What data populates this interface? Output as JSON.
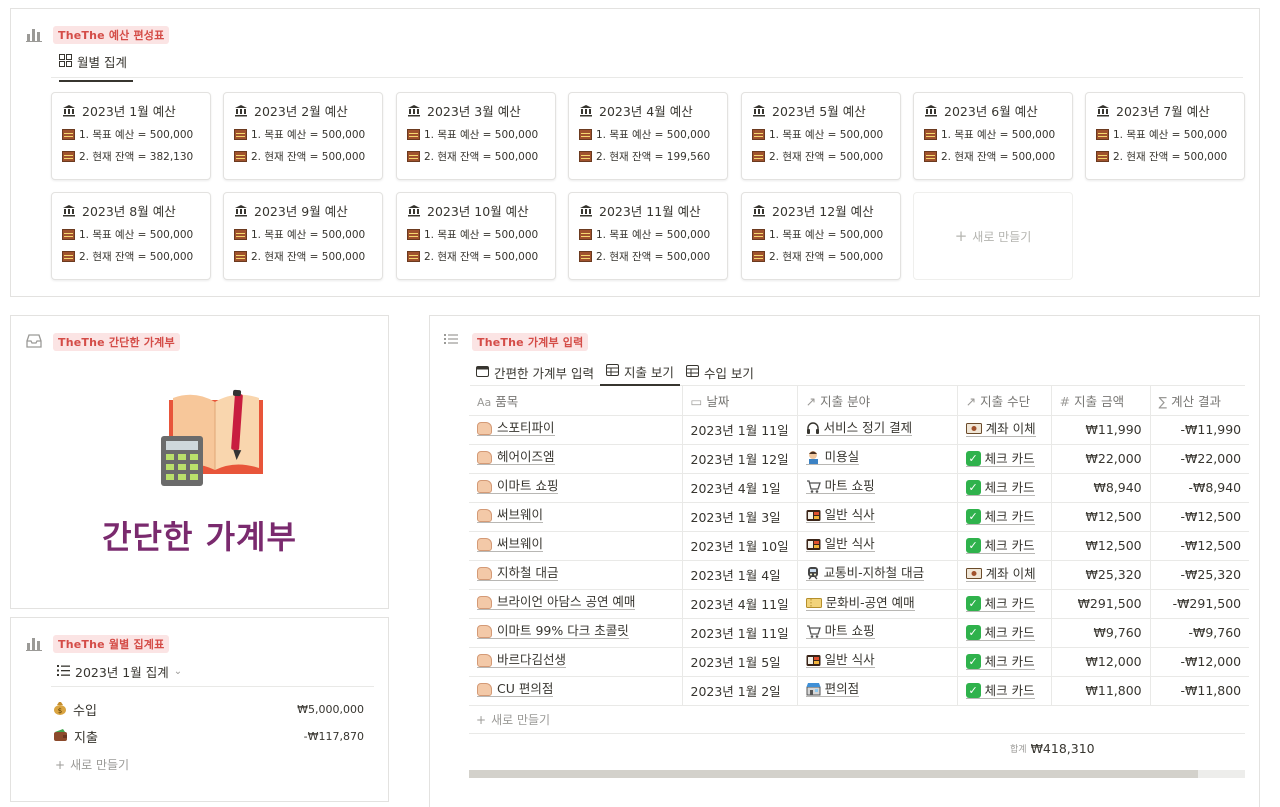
{
  "budget_board": {
    "tag": "TheThe 예산 편성표",
    "view_tab": "월별 집계",
    "cards": [
      {
        "title": "2023년 1월 예산",
        "target": "1. 목표 예산 = 500,000",
        "balance": "2. 현재 잔액 = 382,130"
      },
      {
        "title": "2023년 2월 예산",
        "target": "1. 목표 예산 = 500,000",
        "balance": "2. 현재 잔액 = 500,000"
      },
      {
        "title": "2023년 3월 예산",
        "target": "1. 목표 예산 = 500,000",
        "balance": "2. 현재 잔액 = 500,000"
      },
      {
        "title": "2023년 4월 예산",
        "target": "1. 목표 예산 = 500,000",
        "balance": "2. 현재 잔액 = 199,560"
      },
      {
        "title": "2023년 5월 예산",
        "target": "1. 목표 예산 = 500,000",
        "balance": "2. 현재 잔액 = 500,000"
      },
      {
        "title": "2023년 6월 예산",
        "target": "1. 목표 예산 = 500,000",
        "balance": "2. 현재 잔액 = 500,000"
      },
      {
        "title": "2023년 7월 예산",
        "target": "1. 목표 예산 = 500,000",
        "balance": "2. 현재 잔액 = 500,000"
      },
      {
        "title": "2023년 8월 예산",
        "target": "1. 목표 예산 = 500,000",
        "balance": "2. 현재 잔액 = 500,000"
      },
      {
        "title": "2023년 9월 예산",
        "target": "1. 목표 예산 = 500,000",
        "balance": "2. 현재 잔액 = 500,000"
      },
      {
        "title": "2023년 10월 예산",
        "target": "1. 목표 예산 = 500,000",
        "balance": "2. 현재 잔액 = 500,000"
      },
      {
        "title": "2023년 11월 예산",
        "target": "1. 목표 예산 = 500,000",
        "balance": "2. 현재 잔액 = 500,000"
      },
      {
        "title": "2023년 12월 예산",
        "target": "1. 목표 예산 = 500,000",
        "balance": "2. 현재 잔액 = 500,000"
      }
    ],
    "new_label": "새로 만들기"
  },
  "easy_ledger": {
    "tag": "TheThe 간단한 가계부",
    "title": "간단한 가계부"
  },
  "monthly_summary": {
    "tag": "TheThe 월별 집계표",
    "view": "2023년 1월 집계",
    "rows": [
      {
        "label": "수입",
        "value": "₩5,000,000",
        "icon": "money-bag-icon"
      },
      {
        "label": "지출",
        "value": "-₩117,870",
        "icon": "wallet-icon"
      }
    ],
    "new_label": "새로 만들기"
  },
  "ledger": {
    "tag": "TheThe 가계부 입력",
    "tabs": [
      "간편한 가계부 입력",
      "지출 보기",
      "수입 보기"
    ],
    "active_tab": 1,
    "columns": [
      "품목",
      "날짜",
      "지출 분야",
      "지출 수단",
      "지출 금액",
      "계산 결과"
    ],
    "rows": [
      {
        "item": "스포티파이",
        "date": "2023년 1월 11일",
        "category": "서비스 정기 결제",
        "cat_icon": "headphones-icon",
        "method": "계좌 이체",
        "method_icon": "banknote-icon",
        "amount": "₩11,990",
        "result": "-₩11,990"
      },
      {
        "item": "헤어이즈엠",
        "date": "2023년 1월 12일",
        "category": "미용실",
        "cat_icon": "haircut-icon",
        "method": "체크 카드",
        "method_icon": "check-icon",
        "amount": "₩22,000",
        "result": "-₩22,000"
      },
      {
        "item": "이마트 쇼핑",
        "date": "2023년 4월 1일",
        "category": "마트 쇼핑",
        "cat_icon": "cart-icon",
        "method": "체크 카드",
        "method_icon": "check-icon",
        "amount": "₩8,940",
        "result": "-₩8,940"
      },
      {
        "item": "써브웨이",
        "date": "2023년 1월 3일",
        "category": "일반 식사",
        "cat_icon": "bento-icon",
        "method": "체크 카드",
        "method_icon": "check-icon",
        "amount": "₩12,500",
        "result": "-₩12,500"
      },
      {
        "item": "써브웨이",
        "date": "2023년 1월 10일",
        "category": "일반 식사",
        "cat_icon": "bento-icon",
        "method": "체크 카드",
        "method_icon": "check-icon",
        "amount": "₩12,500",
        "result": "-₩12,500"
      },
      {
        "item": "지하철 대금",
        "date": "2023년 1월 4일",
        "category": "교통비-지하철 대금",
        "cat_icon": "metro-icon",
        "method": "계좌 이체",
        "method_icon": "banknote-icon",
        "amount": "₩25,320",
        "result": "-₩25,320"
      },
      {
        "item": "브라이언 아담스 공연 예매",
        "date": "2023년 4월 11일",
        "category": "문화비-공연 예매",
        "cat_icon": "ticket-icon",
        "method": "체크 카드",
        "method_icon": "check-icon",
        "amount": "₩291,500",
        "result": "-₩291,500"
      },
      {
        "item": "이마트 99% 다크 초콜릿",
        "date": "2023년 1월 11일",
        "category": "마트 쇼핑",
        "cat_icon": "cart-icon",
        "method": "체크 카드",
        "method_icon": "check-icon",
        "amount": "₩9,760",
        "result": "-₩9,760"
      },
      {
        "item": "바르다김선생",
        "date": "2023년 1월 5일",
        "category": "일반 식사",
        "cat_icon": "bento-icon",
        "method": "체크 카드",
        "method_icon": "check-icon",
        "amount": "₩12,000",
        "result": "-₩12,000"
      },
      {
        "item": "CU 편의점",
        "date": "2023년 1월 2일",
        "category": "편의점",
        "cat_icon": "store-icon",
        "method": "체크 카드",
        "method_icon": "check-icon",
        "amount": "₩11,800",
        "result": "-₩11,800"
      }
    ],
    "new_label": "새로 만들기",
    "total_label": "합계",
    "total_value": "₩418,310"
  },
  "colors": {
    "tag_bg": "#fbe4e4",
    "tag_text": "#d44c47",
    "title_purple": "#7a2a6e",
    "check_green": "#2fb24c"
  }
}
